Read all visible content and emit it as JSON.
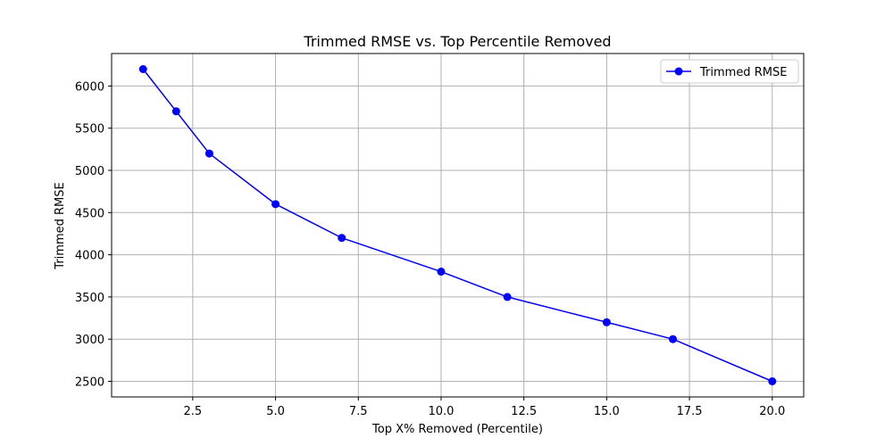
{
  "chart_data": {
    "type": "line",
    "title": "Trimmed RMSE vs. Top Percentile Removed",
    "xlabel": "Top X% Removed (Percentile)",
    "ylabel": "Trimmed RMSE",
    "xlim": [
      0.05,
      20.95
    ],
    "ylim": [
      2315,
      6385
    ],
    "x_ticks": [
      2.5,
      5.0,
      7.5,
      10.0,
      12.5,
      15.0,
      17.5,
      20.0
    ],
    "x_tick_labels": [
      "2.5",
      "5.0",
      "7.5",
      "10.0",
      "12.5",
      "15.0",
      "17.5",
      "20.0"
    ],
    "y_ticks": [
      2500,
      3000,
      3500,
      4000,
      4500,
      5000,
      5500,
      6000
    ],
    "y_tick_labels": [
      "2500",
      "3000",
      "3500",
      "4000",
      "4500",
      "5000",
      "5500",
      "6000"
    ],
    "grid": true,
    "legend_position": "top-right",
    "series": [
      {
        "name": "Trimmed RMSE",
        "color": "#0000ff",
        "marker": "circle",
        "x": [
          1,
          2,
          3,
          5,
          7,
          10,
          12,
          15,
          17,
          20
        ],
        "values": [
          6200,
          5700,
          5200,
          4600,
          4200,
          3800,
          3500,
          3200,
          3000,
          2500
        ]
      }
    ]
  }
}
